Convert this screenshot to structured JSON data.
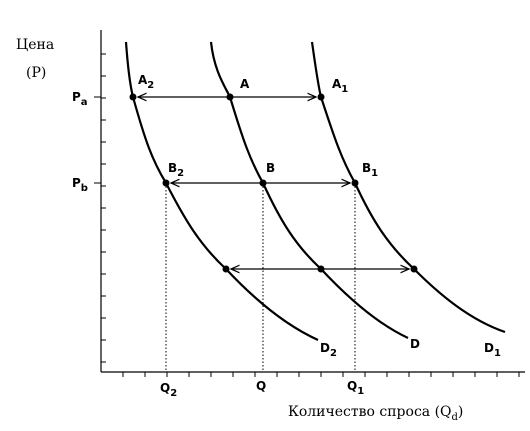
{
  "axis": {
    "y_title": "Цена",
    "y_unit": "(P)",
    "x_title": {
      "text": "Количество спроса (Q",
      "sub": "d",
      "tail": ")"
    }
  },
  "prices": [
    {
      "text": "P",
      "sub": "a"
    },
    {
      "text": "P",
      "sub": "b"
    }
  ],
  "quantities": [
    {
      "text": "Q",
      "sub": "2"
    },
    {
      "text": "Q"
    },
    {
      "text": "Q",
      "sub": "1"
    }
  ],
  "points": [
    {
      "text": "A",
      "sub": "2"
    },
    {
      "text": "A"
    },
    {
      "text": "A",
      "sub": "1"
    },
    {
      "text": "B",
      "sub": "2"
    },
    {
      "text": "B"
    },
    {
      "text": "B",
      "sub": "1"
    }
  ],
  "curves": [
    {
      "text": "D",
      "sub": "2"
    },
    {
      "text": "D"
    },
    {
      "text": "D",
      "sub": "1"
    }
  ]
}
